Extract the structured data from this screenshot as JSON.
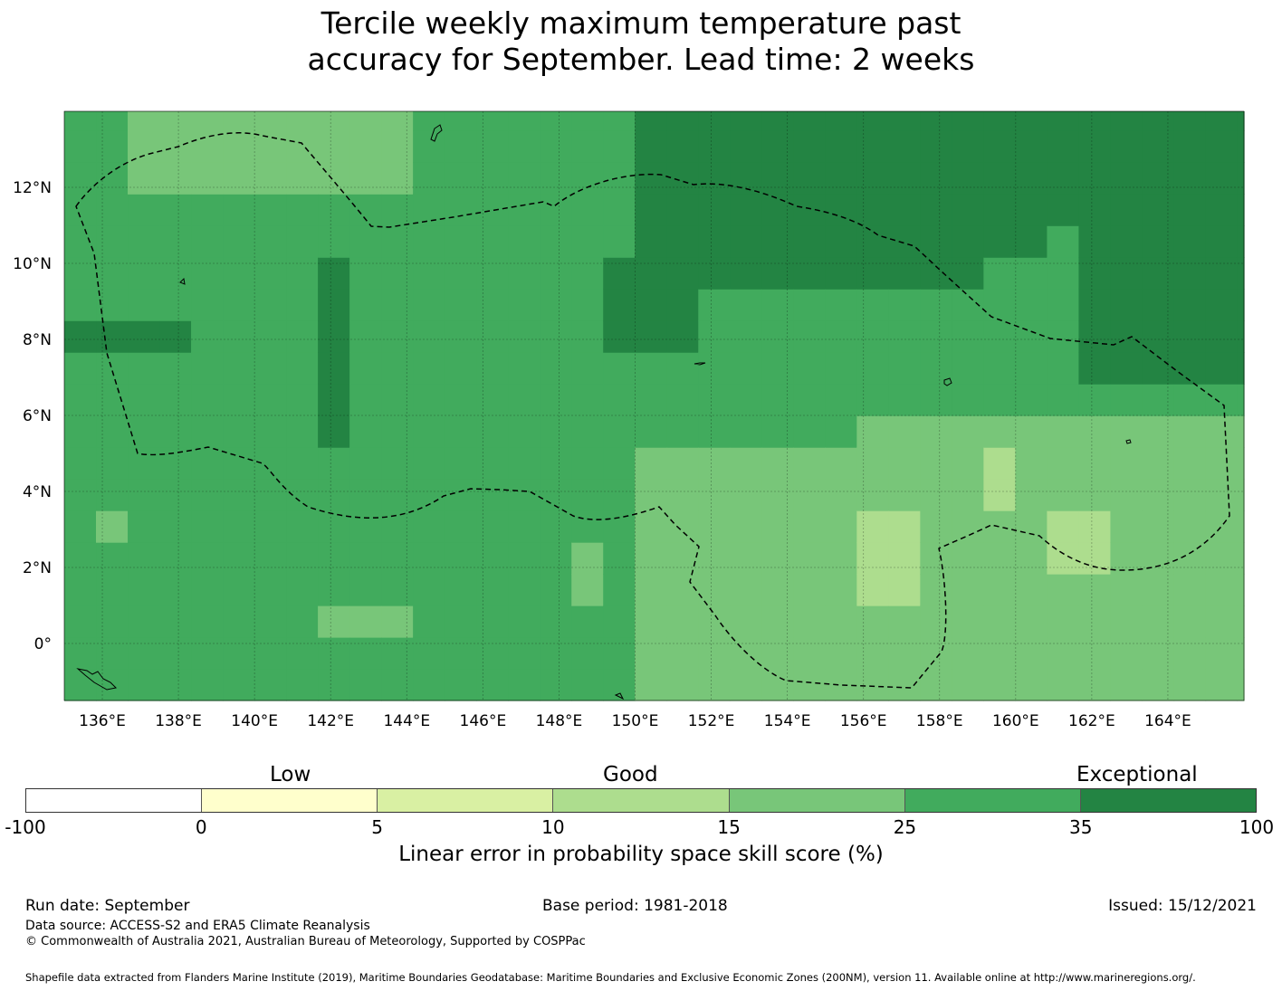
{
  "title": {
    "line1": "Tercile weekly maximum temperature past",
    "line2": "accuracy for September. Lead time: 2 weeks"
  },
  "map": {
    "lon_labels": [
      "136°E",
      "138°E",
      "140°E",
      "142°E",
      "144°E",
      "146°E",
      "148°E",
      "150°E",
      "152°E",
      "154°E",
      "156°E",
      "158°E",
      "160°E",
      "162°E",
      "164°E"
    ],
    "lat_labels": [
      "12°N",
      "10°N",
      "8°N",
      "6°N",
      "4°N",
      "2°N",
      "0°"
    ],
    "lon_range": [
      135.0,
      166.0
    ],
    "lat_range": [
      -1.5,
      14.0
    ],
    "grid_lons": [
      136,
      138,
      140,
      142,
      144,
      146,
      148,
      150,
      152,
      154,
      156,
      158,
      160,
      162,
      164
    ],
    "grid_lats": [
      12,
      10,
      8,
      6,
      4,
      2,
      0
    ],
    "cell_size_deg": 0.833,
    "eez_boundary": "dashed"
  },
  "legend": {
    "category_low": "Low",
    "category_good": "Good",
    "category_exceptional": "Exceptional",
    "ticks": [
      "-100",
      "0",
      "5",
      "10",
      "15",
      "25",
      "35",
      "100"
    ],
    "colors": [
      "#ffffff",
      "#ffffcc",
      "#d9f0a3",
      "#addd8e",
      "#78c679",
      "#41ab5d",
      "#238443"
    ],
    "title": "Linear error in probability space skill score (%)"
  },
  "footer": {
    "run_date": "Run date: September",
    "base_period": "Base period: 1981-2018",
    "issued": "Issued: 15/12/2021",
    "data_source": "Data source: ACCESS-S2 and ERA5 Climate Reanalysis",
    "copyright": "© Commonwealth of Australia 2021, Australian Bureau of Meteorology, Supported by COSPPac",
    "shapefile": "Shapefile data extracted from Flanders Marine Institute (2019), Maritime Boundaries Geodatabase: Maritime Boundaries and Exclusive Economic Zones (200NM), version 11. Available online at http://www.marineregions.org/."
  }
}
